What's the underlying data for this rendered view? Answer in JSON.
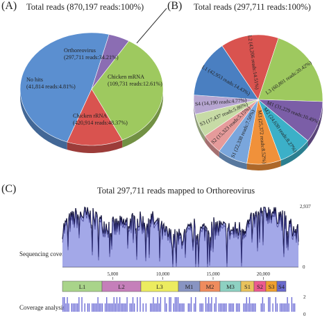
{
  "panels": {
    "a": {
      "label": "(A)",
      "title": "Total reads (870,197 reads:100%)"
    },
    "b": {
      "label": "(B)",
      "title": "Total reads (297,711 reads:100%)"
    },
    "c": {
      "label": "(C)",
      "title": "Total 297,711 reads mapped to Orthoreovirus",
      "coverage_label": "Sequencing coverage",
      "analysis_label": "Coverage analysis",
      "ymax_label": "2,937",
      "ymin_label": "0",
      "analysis_top": "2",
      "analysis_bottom": "0"
    }
  },
  "chart_data": [
    {
      "type": "pie",
      "title": "Total reads (870,197 reads:100%)",
      "slices": [
        {
          "name": "Chicken rRNA",
          "reads": 420914,
          "percent": 48.37,
          "label2": "(420,914 reads:48.37%)",
          "color": "#5b8fd0"
        },
        {
          "name": "No hits",
          "reads": 41814,
          "percent": 4.81,
          "label2": "(41,814 reads:4.81%)",
          "color": "#8b6db3"
        },
        {
          "name": "Orthoreovirus",
          "reads": 297711,
          "percent": 34.21,
          "label2": "(297,711 reads:34.21%)",
          "color": "#9ec95f"
        },
        {
          "name": "Chicken mRNA",
          "reads": 109731,
          "percent": 12.61,
          "label2": "(109,731 reads:12.61%)",
          "color": "#d9534f"
        }
      ]
    },
    {
      "type": "pie",
      "title": "Total reads (297,711 reads:100%)",
      "slices": [
        {
          "name": "L2",
          "label": "L2 (43,206 reads:14.51%)",
          "reads": 43206,
          "percent": 14.51,
          "color": "#d9534f"
        },
        {
          "name": "L3",
          "label": "L3 (60,801 reads:20.42%)",
          "reads": 60801,
          "percent": 20.42,
          "color": "#9ec95f"
        },
        {
          "name": "M1",
          "label": "M1 (31,229 reads:10.49%)",
          "reads": 31229,
          "percent": 10.49,
          "color": "#7b5ea7"
        },
        {
          "name": "M2",
          "label": "M2 (24,630 reads:8.27%)",
          "reads": 24630,
          "percent": 8.27,
          "color": "#3cb0c8"
        },
        {
          "name": "M3",
          "label": "M3 (25,372 reads:8.52%)",
          "reads": 25372,
          "percent": 8.52,
          "color": "#f0913a"
        },
        {
          "name": "S1",
          "label": "S1 (22,338 reads:7.50%)",
          "reads": 22338,
          "percent": 7.5,
          "color": "#7aa6dc"
        },
        {
          "name": "S2",
          "label": "S2 (15,323 reads:5.15%)",
          "reads": 15323,
          "percent": 5.15,
          "color": "#e59b9b"
        },
        {
          "name": "S3",
          "label": "S3 (17,437 reads:5.86%)",
          "reads": 17437,
          "percent": 5.86,
          "color": "#c7dba6"
        },
        {
          "name": "S4",
          "label": "S4 (14,190 reads:4.77%)",
          "reads": 14190,
          "percent": 4.77,
          "color": "#b7a6d1"
        },
        {
          "name": "L1",
          "label": "L1 (42,953 reads:14.43%)",
          "reads": 42953,
          "percent": 14.43,
          "color": "#4a7fc1"
        }
      ]
    },
    {
      "type": "area",
      "title": "Total 297,711 reads mapped to Orthoreovirus",
      "ylabel": "Sequencing coverage",
      "ylim": [
        0,
        2937
      ],
      "xticks": [
        "5,000",
        "10,000",
        "15,000",
        "20,000"
      ],
      "xtick_values": [
        5000,
        10000,
        15000,
        20000
      ],
      "xlim": [
        0,
        23500
      ],
      "fill_color": "#a3a8e8",
      "line_color": "#14143c",
      "segments": [
        {
          "name": "L1",
          "color": "#a9d48a"
        },
        {
          "name": "L2",
          "color": "#c57fba"
        },
        {
          "name": "L3",
          "color": "#ecec5f"
        },
        {
          "name": "M1",
          "color": "#8894c2"
        },
        {
          "name": "M2",
          "color": "#ef8c5e"
        },
        {
          "name": "M3",
          "color": "#8ed1c2"
        },
        {
          "name": "S1",
          "color": "#e9c35c"
        },
        {
          "name": "S2",
          "color": "#ec5a8f"
        },
        {
          "name": "S3",
          "color": "#f0a02e"
        },
        {
          "name": "S4",
          "color": "#6a6acd"
        }
      ]
    }
  ]
}
